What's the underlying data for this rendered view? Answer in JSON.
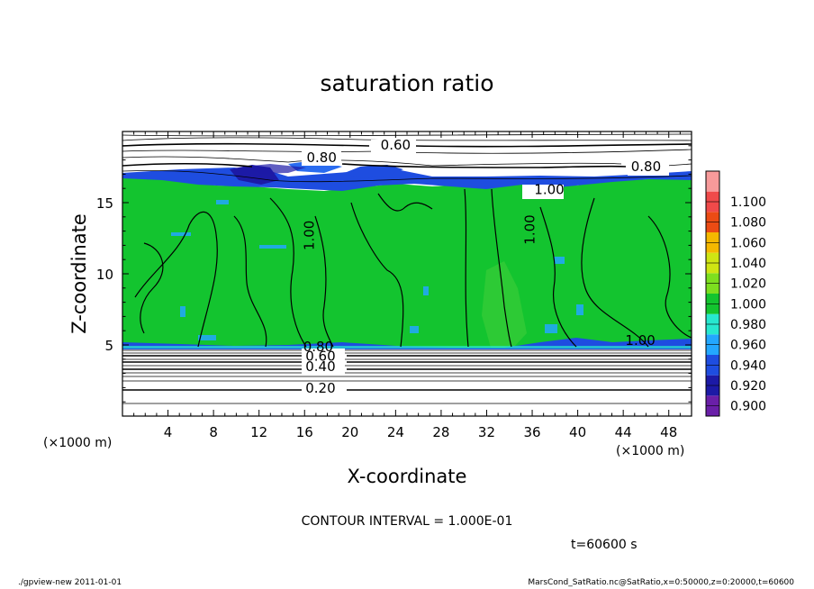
{
  "chart_data": {
    "type": "heatmap",
    "title": "saturation ratio",
    "xlabel": "X-coordinate",
    "ylabel": "Z-coordinate",
    "x_unit": "(×1000 m)",
    "y_unit": "(×1000 m)",
    "xlim": [
      0,
      50
    ],
    "ylim": [
      0,
      20
    ],
    "x_ticks": [
      "4",
      "8",
      "12",
      "16",
      "20",
      "24",
      "28",
      "32",
      "36",
      "40",
      "44",
      "48"
    ],
    "y_ticks": [
      "5",
      "10",
      "15"
    ],
    "colorbar": {
      "levels": [
        "0.900",
        "0.920",
        "0.940",
        "0.960",
        "0.980",
        "1.000",
        "1.020",
        "1.040",
        "1.060",
        "1.080",
        "1.100"
      ],
      "colors": [
        "#6a1fa8",
        "#1c1aa6",
        "#1e4de0",
        "#23a7ff",
        "#27e8cf",
        "#13c42f",
        "#7ddf1f",
        "#cfe513",
        "#f5b800",
        "#ec4b14",
        "#f04a4a",
        "#f79a9a"
      ]
    },
    "contour_labels": [
      {
        "text": "0.60",
        "x": 24.0,
        "z": 18.75
      },
      {
        "text": "0.80",
        "x": 17.5,
        "z": 17.85
      },
      {
        "text": "0.80",
        "x": 46.0,
        "z": 17.2
      },
      {
        "text": "1.00",
        "x": 37.5,
        "z": 15.6
      },
      {
        "text": "1.00",
        "x": 16.8,
        "z": 12.7
      },
      {
        "text": "1.00",
        "x": 36.2,
        "z": 13.1
      },
      {
        "text": "1.00",
        "x": 45.5,
        "z": 5.0
      },
      {
        "text": "0.80",
        "x": 17.2,
        "z": 4.55
      },
      {
        "text": "0.60",
        "x": 17.4,
        "z": 3.9
      },
      {
        "text": "0.40",
        "x": 17.4,
        "z": 3.15
      },
      {
        "text": "0.20",
        "x": 17.4,
        "z": 1.65
      }
    ],
    "contour_interval": "CONTOUR INTERVAL = 1.000E-01",
    "time": "t=60600 s"
  },
  "footer": {
    "left": "./gpview-new  2011-01-01",
    "right": "MarsCond_SatRatio.nc@SatRatio,x=0:50000,z=0:20000,t=60600"
  }
}
